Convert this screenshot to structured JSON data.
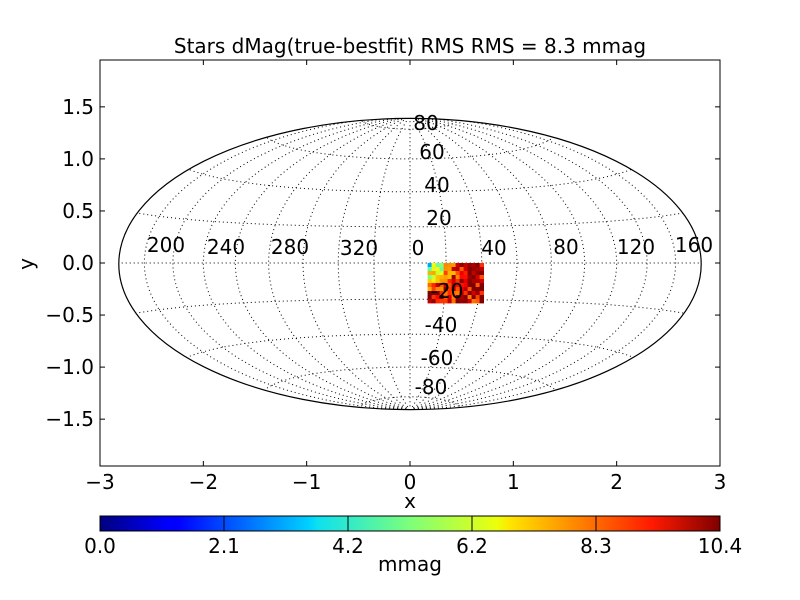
{
  "chart_data": {
    "type": "heatmap",
    "projection": "hammer-aitoff",
    "title": "Stars dMag(true-bestfit)  RMS  RMS =  8.3 mmag",
    "xlabel": "x",
    "ylabel": "y",
    "xlim": [
      -3,
      3
    ],
    "ylim": [
      -1.95,
      1.95
    ],
    "x_ticks": [
      "−3",
      "−2",
      "−1",
      "0",
      "1",
      "2",
      "3"
    ],
    "y_ticks": [
      "1.5",
      "1.0",
      "0.5",
      "0.0",
      "−0.5",
      "−1.0",
      "−1.5"
    ],
    "x_tick_values": [
      -3,
      -2,
      -1,
      0,
      1,
      2,
      3
    ],
    "y_tick_values": [
      1.5,
      1.0,
      0.5,
      0.0,
      -0.5,
      -1.0,
      -1.5
    ],
    "longitude_labels": [
      "200",
      "240",
      "280",
      "320",
      "0",
      "40",
      "80",
      "120",
      "160"
    ],
    "latitude_labels": [
      "80",
      "60",
      "40",
      "20",
      "-20",
      "-40",
      "-60",
      "-80"
    ],
    "grid": true,
    "colorbar": {
      "label": "mmag",
      "ticks": [
        "0.0",
        "2.1",
        "4.2",
        "6.2",
        "8.3",
        "10.4"
      ],
      "range": [
        0.0,
        10.4
      ],
      "colormap": "jet"
    },
    "data_patch": {
      "x_range": [
        0.17,
        0.68
      ],
      "y_range": [
        -0.35,
        0.0
      ],
      "value_range": [
        3.0,
        10.4
      ],
      "dominant_value": 9.5
    }
  }
}
